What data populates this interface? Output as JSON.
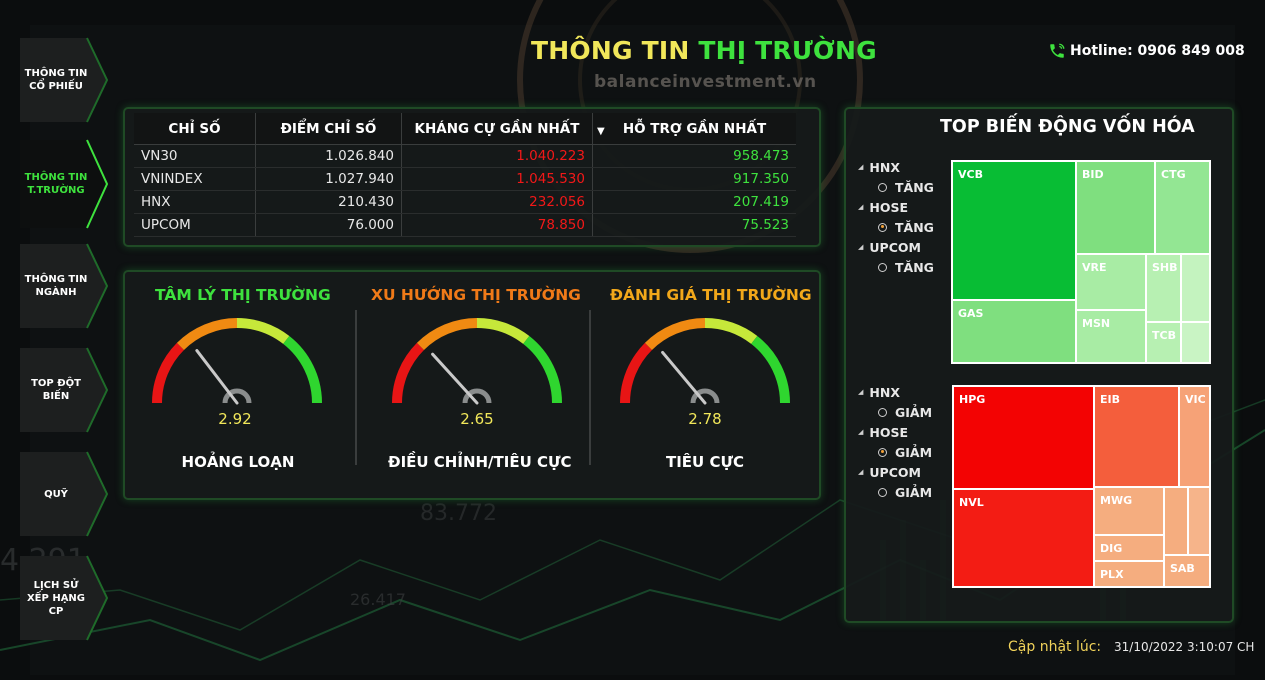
{
  "header": {
    "title_part1": "THÔNG TIN ",
    "title_part2": "THỊ TRƯỜNG",
    "watermark": "balanceinvestment.vn",
    "hotline": "Hotline: 0906 849 008"
  },
  "sidebar": {
    "items": [
      {
        "label": "THÔNG TIN CỔ PHIẾU",
        "active": false
      },
      {
        "label": "THÔNG TIN T.TRƯỜNG",
        "active": true
      },
      {
        "label": "THÔNG TIN NGÀNH",
        "active": false
      },
      {
        "label": "TOP ĐỘT BIẾN",
        "active": false
      },
      {
        "label": "QUỸ",
        "active": false
      },
      {
        "label": "LỊCH SỬ XẾP HẠNG CP",
        "active": false
      }
    ]
  },
  "index_table": {
    "headers": [
      "CHỈ SỐ",
      "ĐIỂM CHỈ SỐ",
      "KHÁNG CỰ GẦN NHẤT",
      "HỖ TRỢ GẦN NHẤT"
    ],
    "rows": [
      [
        "VN30",
        "1.026.840",
        "1.040.223",
        "958.473"
      ],
      [
        "VNINDEX",
        "1.027.940",
        "1.045.530",
        "917.350"
      ],
      [
        "HNX",
        "210.430",
        "232.056",
        "207.419"
      ],
      [
        "UPCOM",
        "76.000",
        "78.850",
        "75.523"
      ]
    ]
  },
  "gauges": [
    {
      "title": "TÂM LÝ THỊ TRƯỜNG",
      "title_color": "#3ee23e",
      "value": "2.92",
      "level": 2.92,
      "label": "HOẢNG LOẠN"
    },
    {
      "title": "XU HƯỚNG THỊ TRƯỜNG",
      "title_color": "#f07a18",
      "value": "2.65",
      "level": 2.65,
      "label": "ĐIỀU CHỈNH/TIÊU CỰC"
    },
    {
      "title": "ĐÁNH GIÁ THỊ TRƯỜNG",
      "title_color": "#f2a81a",
      "value": "2.78",
      "level": 2.78,
      "label": "TIÊU CỰC"
    }
  ],
  "gauge_scale": {
    "min": 0,
    "max": 10
  },
  "top_cap": {
    "title": "TOP BIẾN ĐỘNG VỐN HÓA",
    "increase_filters": [
      {
        "exchange": "HNX",
        "option": "TĂNG",
        "selected": false
      },
      {
        "exchange": "HOSE",
        "option": "TĂNG",
        "selected": true
      },
      {
        "exchange": "UPCOM",
        "option": "TĂNG",
        "selected": false
      }
    ],
    "decrease_filters": [
      {
        "exchange": "HNX",
        "option": "GIẢM",
        "selected": false
      },
      {
        "exchange": "HOSE",
        "option": "GIẢM",
        "selected": true
      },
      {
        "exchange": "UPCOM",
        "option": "GIẢM",
        "selected": false
      }
    ],
    "increase_tiles": [
      {
        "ticker": "VCB",
        "color": "#08bd34"
      },
      {
        "ticker": "BID",
        "color": "#7fdf7f"
      },
      {
        "ticker": "CTG",
        "color": "#93e693"
      },
      {
        "ticker": "GAS",
        "color": "#7fdf7f"
      },
      {
        "ticker": "VRE",
        "color": "#a8eca4"
      },
      {
        "ticker": "SHB",
        "color": "#b7f0b2"
      },
      {
        "ticker": "MSN",
        "color": "#a8eca4"
      },
      {
        "ticker": "TCB",
        "color": "#b7f0b2"
      }
    ],
    "decrease_tiles": [
      {
        "ticker": "HPG",
        "color": "#f30303"
      },
      {
        "ticker": "EIB",
        "color": "#f45e3c"
      },
      {
        "ticker": "VIC",
        "color": "#f6a277"
      },
      {
        "ticker": "NVL",
        "color": "#f31c14"
      },
      {
        "ticker": "MWG",
        "color": "#f5ad7f"
      },
      {
        "ticker": "DIG",
        "color": "#f5ad7f"
      },
      {
        "ticker": "PLX",
        "color": "#f5ad7f"
      },
      {
        "ticker": "SAB",
        "color": "#f5ad7f"
      }
    ]
  },
  "footer": {
    "update_label": "Cập nhật lúc:",
    "update_value": "31/10/2022 3:10:07 CH"
  },
  "colors": {
    "accent_green": "#3ee23e",
    "accent_yellow": "#f1e75a",
    "resistance_red": "#f21818"
  }
}
